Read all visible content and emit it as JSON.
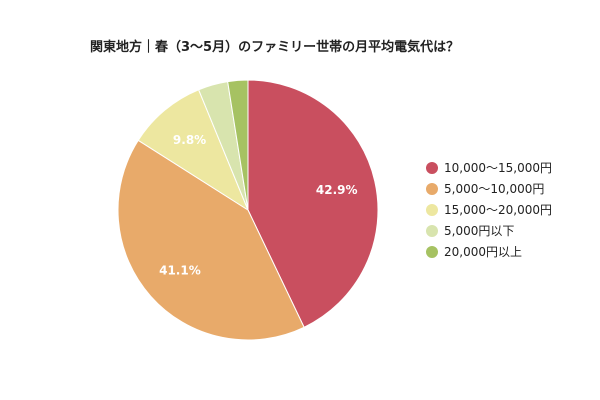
{
  "chart_data": {
    "type": "pie",
    "title": "関東地方｜春（3〜5月）のファミリー世帯の月平均電気代は？",
    "categories": [
      "10,000〜15,000円",
      "5,000〜10,000円",
      "15,000〜20,000円",
      "5,000円以下",
      "20,000円以上"
    ],
    "values": [
      42.9,
      41.1,
      9.8,
      3.7,
      2.5
    ],
    "data_labels": [
      "42.9%",
      "41.1%",
      "9.8%",
      "",
      ""
    ],
    "colors": [
      "#c94f5f",
      "#e8aa6a",
      "#ede7a0",
      "#d8e4ae",
      "#a6c262"
    ],
    "legend_position": "right",
    "start_angle_deg": 0,
    "direction": "clockwise"
  }
}
